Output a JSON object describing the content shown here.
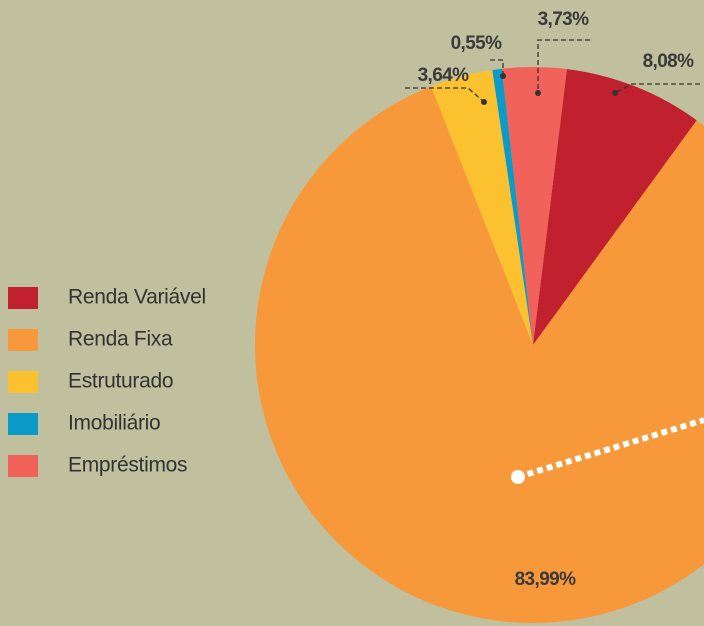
{
  "chart_data": {
    "type": "pie",
    "categories": [
      "Renda Variável",
      "Renda Fixa",
      "Estruturado",
      "Imobiliário",
      "Empréstimos"
    ],
    "values": [
      8.08,
      83.99,
      3.64,
      0.55,
      3.73
    ],
    "value_labels": [
      "8,08%",
      "83,99%",
      "3,64%",
      "0,55%",
      "3,73%"
    ],
    "colors": [
      "#c1202f",
      "#f7993a",
      "#fcc12e",
      "#0a9bc8",
      "#f0625a"
    ],
    "legend": "left"
  }
}
